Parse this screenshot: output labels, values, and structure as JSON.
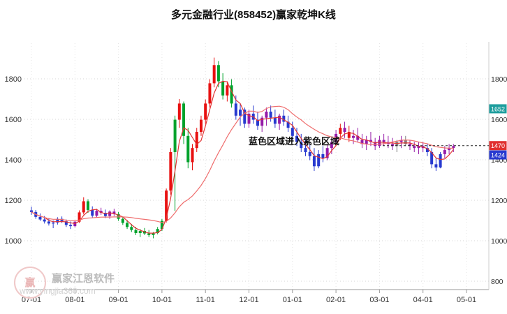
{
  "title": "多元金融行业(858452)赢家乾坤K线",
  "annotation": "蓝色区域进入紫色区域",
  "watermark": {
    "brand": "赢家江恩软件",
    "url": "www.yingjia360.com",
    "logo_char": "赢"
  },
  "axes": {
    "x_labels": [
      "07-01",
      "08-01",
      "09-01",
      "10-01",
      "11-01",
      "12-01",
      "01-01",
      "02-01",
      "03-01",
      "04-01",
      "05-01"
    ],
    "y_left": [
      "1800",
      "1600",
      "1400",
      "1200",
      "1000"
    ],
    "y_right": [
      "1800",
      "1600",
      "1400",
      "1200",
      "1000",
      "800"
    ]
  },
  "colors": {
    "r": "#e81010",
    "g": "#00a22c",
    "b": "#2739cf",
    "p": "#951aa8",
    "y": "#7d7d7d",
    "ma_fast": "#e23434",
    "ma_slow": "#ef6e6e",
    "grid": "#d6d6d6",
    "axis_line": "#9a9a9a",
    "axis_text": "#333333",
    "hline": "#222222"
  },
  "chart_data": {
    "type": "candlestick",
    "title": "多元金融行业(858452)赢家乾坤K线",
    "ylim": [
      760,
      1950
    ],
    "y_ticks": [
      800,
      1000,
      1200,
      1400,
      1600,
      1800
    ],
    "x_tick_labels": [
      "07-01",
      "08-01",
      "09-01",
      "10-01",
      "11-01",
      "12-01",
      "01-01",
      "02-01",
      "03-01",
      "04-01",
      "05-01"
    ],
    "grid": true,
    "ma_windows": [
      4,
      18
    ],
    "hline": {
      "value": 1470
    },
    "right_markers": [
      {
        "label": "1652",
        "value": 1652,
        "color": "#1d9d9d"
      },
      {
        "label": "1470",
        "value": 1470,
        "color": "#e03030"
      },
      {
        "label": "1424",
        "value": 1424,
        "color": "#2739cf"
      }
    ],
    "candle_color_legend": {
      "r": "red",
      "g": "green",
      "b": "blue",
      "p": "purple",
      "y": "gray"
    },
    "candles": [
      [
        1150,
        1168,
        1128,
        1142,
        "b"
      ],
      [
        1142,
        1152,
        1108,
        1118,
        "b"
      ],
      [
        1118,
        1135,
        1098,
        1105,
        "b"
      ],
      [
        1105,
        1122,
        1085,
        1095,
        "b"
      ],
      [
        1095,
        1112,
        1075,
        1085,
        "b"
      ],
      [
        1085,
        1100,
        1062,
        1090,
        "b"
      ],
      [
        1090,
        1116,
        1080,
        1108,
        "b"
      ],
      [
        1108,
        1120,
        1088,
        1096,
        "b"
      ],
      [
        1096,
        1105,
        1068,
        1078,
        "b"
      ],
      [
        1078,
        1095,
        1058,
        1072,
        "b"
      ],
      [
        1072,
        1100,
        1066,
        1094,
        "p"
      ],
      [
        1094,
        1150,
        1088,
        1140,
        "r"
      ],
      [
        1140,
        1215,
        1130,
        1195,
        "r"
      ],
      [
        1195,
        1205,
        1138,
        1152,
        "g"
      ],
      [
        1152,
        1170,
        1112,
        1124,
        "b"
      ],
      [
        1124,
        1158,
        1116,
        1148,
        "p"
      ],
      [
        1148,
        1163,
        1128,
        1138,
        "p"
      ],
      [
        1138,
        1154,
        1112,
        1122,
        "b"
      ],
      [
        1122,
        1150,
        1108,
        1144,
        "p"
      ],
      [
        1144,
        1158,
        1122,
        1132,
        "p"
      ],
      [
        1132,
        1142,
        1098,
        1108,
        "g"
      ],
      [
        1108,
        1118,
        1078,
        1088,
        "g"
      ],
      [
        1088,
        1103,
        1058,
        1068,
        "g"
      ],
      [
        1068,
        1083,
        1043,
        1053,
        "g"
      ],
      [
        1053,
        1068,
        1028,
        1038,
        "g"
      ],
      [
        1038,
        1058,
        1018,
        1048,
        "g"
      ],
      [
        1048,
        1063,
        1028,
        1036,
        "g"
      ],
      [
        1036,
        1053,
        1018,
        1028,
        "g"
      ],
      [
        1028,
        1043,
        1012,
        1038,
        "g"
      ],
      [
        1038,
        1068,
        1032,
        1058,
        "g"
      ],
      [
        1058,
        1108,
        1048,
        1098,
        "g"
      ],
      [
        1098,
        1258,
        1090,
        1248,
        "r"
      ],
      [
        1248,
        1458,
        1228,
        1438,
        "r"
      ],
      [
        1438,
        1618,
        1148,
        1598,
        "g"
      ],
      [
        1598,
        1700,
        1558,
        1678,
        "r"
      ],
      [
        1678,
        1688,
        1478,
        1518,
        "g"
      ],
      [
        1518,
        1558,
        1358,
        1388,
        "g"
      ],
      [
        1388,
        1478,
        1348,
        1458,
        "r"
      ],
      [
        1458,
        1558,
        1438,
        1538,
        "r"
      ],
      [
        1538,
        1618,
        1518,
        1598,
        "r"
      ],
      [
        1598,
        1698,
        1578,
        1678,
        "r"
      ],
      [
        1678,
        1798,
        1658,
        1778,
        "r"
      ],
      [
        1778,
        1905,
        1758,
        1868,
        "r"
      ],
      [
        1868,
        1888,
        1758,
        1788,
        "g"
      ],
      [
        1788,
        1828,
        1698,
        1718,
        "g"
      ],
      [
        1718,
        1788,
        1688,
        1768,
        "r"
      ],
      [
        1768,
        1798,
        1658,
        1678,
        "g"
      ],
      [
        1678,
        1718,
        1598,
        1618,
        "b"
      ],
      [
        1618,
        1678,
        1568,
        1648,
        "b"
      ],
      [
        1648,
        1658,
        1558,
        1578,
        "b"
      ],
      [
        1578,
        1648,
        1558,
        1628,
        "p"
      ],
      [
        1628,
        1668,
        1578,
        1598,
        "b"
      ],
      [
        1598,
        1638,
        1548,
        1568,
        "b"
      ],
      [
        1568,
        1618,
        1538,
        1608,
        "p"
      ],
      [
        1608,
        1658,
        1568,
        1638,
        "p"
      ],
      [
        1638,
        1668,
        1588,
        1608,
        "b"
      ],
      [
        1608,
        1648,
        1558,
        1578,
        "b"
      ],
      [
        1578,
        1628,
        1548,
        1618,
        "p"
      ],
      [
        1618,
        1648,
        1568,
        1588,
        "b"
      ],
      [
        1588,
        1618,
        1538,
        1558,
        "b"
      ],
      [
        1558,
        1588,
        1498,
        1518,
        "b"
      ],
      [
        1518,
        1558,
        1468,
        1488,
        "b"
      ],
      [
        1488,
        1528,
        1438,
        1458,
        "b"
      ],
      [
        1458,
        1498,
        1418,
        1438,
        "b"
      ],
      [
        1438,
        1478,
        1398,
        1418,
        "b"
      ],
      [
        1418,
        1458,
        1345,
        1368,
        "b"
      ],
      [
        1368,
        1448,
        1358,
        1428,
        "b"
      ],
      [
        1428,
        1468,
        1388,
        1408,
        "b"
      ],
      [
        1408,
        1478,
        1398,
        1458,
        "p"
      ],
      [
        1458,
        1508,
        1428,
        1488,
        "p"
      ],
      [
        1488,
        1548,
        1468,
        1528,
        "p"
      ],
      [
        1528,
        1578,
        1498,
        1558,
        "r"
      ],
      [
        1558,
        1588,
        1508,
        1538,
        "p"
      ],
      [
        1538,
        1568,
        1488,
        1508,
        "r"
      ],
      [
        1508,
        1548,
        1478,
        1518,
        "p"
      ],
      [
        1518,
        1558,
        1488,
        1498,
        "p"
      ],
      [
        1498,
        1528,
        1458,
        1478,
        "p"
      ],
      [
        1478,
        1518,
        1448,
        1498,
        "p"
      ],
      [
        1498,
        1538,
        1468,
        1488,
        "p"
      ],
      [
        1488,
        1508,
        1448,
        1468,
        "p"
      ],
      [
        1468,
        1518,
        1458,
        1498,
        "p"
      ],
      [
        1498,
        1528,
        1468,
        1488,
        "p"
      ],
      [
        1488,
        1518,
        1458,
        1478,
        "p"
      ],
      [
        1478,
        1508,
        1448,
        1468,
        "p"
      ],
      [
        1468,
        1498,
        1438,
        1488,
        "y"
      ],
      [
        1488,
        1518,
        1458,
        1498,
        "p"
      ],
      [
        1498,
        1518,
        1468,
        1478,
        "y"
      ],
      [
        1478,
        1498,
        1448,
        1468,
        "p"
      ],
      [
        1468,
        1488,
        1438,
        1458,
        "p"
      ],
      [
        1458,
        1488,
        1428,
        1468,
        "p"
      ],
      [
        1468,
        1488,
        1438,
        1458,
        "p"
      ],
      [
        1458,
        1478,
        1418,
        1438,
        "b"
      ],
      [
        1438,
        1458,
        1358,
        1378,
        "b"
      ],
      [
        1378,
        1408,
        1345,
        1362,
        "b"
      ],
      [
        1362,
        1438,
        1358,
        1428,
        "b"
      ],
      [
        1428,
        1468,
        1408,
        1448,
        "p"
      ],
      [
        1448,
        1478,
        1428,
        1458,
        "p"
      ],
      [
        1458,
        1478,
        1438,
        1468,
        "p"
      ]
    ]
  }
}
